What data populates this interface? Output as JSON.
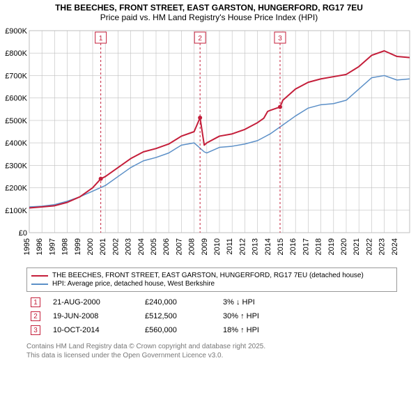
{
  "title_line1": "THE BEECHES, FRONT STREET, EAST GARSTON, HUNGERFORD, RG17 7EU",
  "title_line2": "Price paid vs. HM Land Registry's House Price Index (HPI)",
  "chart": {
    "type": "line",
    "xlim": [
      1995,
      2025
    ],
    "ylim": [
      0,
      900000
    ],
    "ytick_step": 100000,
    "yticks": [
      "£0",
      "£100K",
      "£200K",
      "£300K",
      "£400K",
      "£500K",
      "£600K",
      "£700K",
      "£800K",
      "£900K"
    ],
    "xticks": [
      1995,
      1996,
      1997,
      1998,
      1999,
      2000,
      2001,
      2002,
      2003,
      2004,
      2005,
      2006,
      2007,
      2008,
      2009,
      2010,
      2011,
      2012,
      2013,
      2014,
      2015,
      2016,
      2017,
      2018,
      2019,
      2020,
      2021,
      2022,
      2023,
      2024
    ],
    "background_color": "#ffffff",
    "grid_color": "#bfbfbf",
    "line_width_primary": 2,
    "line_width_secondary": 1.5,
    "marker_fill": "#c41e3a",
    "marker_radius": 3,
    "event_line_color": "#c41e3a",
    "event_line_dash": "3,3",
    "series": [
      {
        "id": "property",
        "label": "THE BEECHES, FRONT STREET, EAST GARSTON, HUNGERFORD, RG17 7EU (detached house)",
        "color": "#c41e3a",
        "points": [
          [
            1995,
            110
          ],
          [
            1996,
            115
          ],
          [
            1997,
            120
          ],
          [
            1998,
            135
          ],
          [
            1999,
            160
          ],
          [
            2000,
            200
          ],
          [
            2000.64,
            240
          ],
          [
            2001,
            250
          ],
          [
            2002,
            290
          ],
          [
            2003,
            330
          ],
          [
            2004,
            360
          ],
          [
            2005,
            375
          ],
          [
            2006,
            395
          ],
          [
            2007,
            430
          ],
          [
            2008,
            450
          ],
          [
            2008.47,
            512
          ],
          [
            2008.8,
            390
          ],
          [
            2009,
            400
          ],
          [
            2010,
            430
          ],
          [
            2011,
            440
          ],
          [
            2012,
            460
          ],
          [
            2013,
            490
          ],
          [
            2013.5,
            510
          ],
          [
            2013.8,
            540
          ],
          [
            2014,
            545
          ],
          [
            2014.78,
            560
          ],
          [
            2015,
            590
          ],
          [
            2016,
            640
          ],
          [
            2017,
            670
          ],
          [
            2018,
            685
          ],
          [
            2019,
            695
          ],
          [
            2020,
            705
          ],
          [
            2021,
            740
          ],
          [
            2022,
            790
          ],
          [
            2023,
            810
          ],
          [
            2024,
            785
          ],
          [
            2025,
            780
          ]
        ]
      },
      {
        "id": "hpi",
        "label": "HPI: Average price, detached house, West Berkshire",
        "color": "#5b8fc7",
        "points": [
          [
            1995,
            115
          ],
          [
            1996,
            118
          ],
          [
            1997,
            125
          ],
          [
            1998,
            140
          ],
          [
            1999,
            160
          ],
          [
            2000,
            185
          ],
          [
            2001,
            210
          ],
          [
            2002,
            250
          ],
          [
            2003,
            290
          ],
          [
            2004,
            320
          ],
          [
            2005,
            335
          ],
          [
            2006,
            355
          ],
          [
            2007,
            390
          ],
          [
            2008,
            400
          ],
          [
            2008.8,
            360
          ],
          [
            2009,
            355
          ],
          [
            2010,
            380
          ],
          [
            2011,
            385
          ],
          [
            2012,
            395
          ],
          [
            2013,
            410
          ],
          [
            2014,
            440
          ],
          [
            2015,
            480
          ],
          [
            2016,
            520
          ],
          [
            2017,
            555
          ],
          [
            2018,
            570
          ],
          [
            2019,
            575
          ],
          [
            2020,
            590
          ],
          [
            2021,
            640
          ],
          [
            2022,
            690
          ],
          [
            2023,
            700
          ],
          [
            2024,
            680
          ],
          [
            2025,
            685
          ]
        ]
      }
    ],
    "events": [
      {
        "n": "1",
        "x": 2000.64
      },
      {
        "n": "2",
        "x": 2008.47
      },
      {
        "n": "3",
        "x": 2014.78
      }
    ],
    "event_box_fill": "#ffffff"
  },
  "legend": {
    "items": [
      {
        "color": "#c41e3a",
        "label": "THE BEECHES, FRONT STREET, EAST GARSTON, HUNGERFORD, RG17 7EU (detached house)"
      },
      {
        "color": "#5b8fc7",
        "label": "HPI: Average price, detached house, West Berkshire"
      }
    ]
  },
  "markers": [
    {
      "n": "1",
      "date": "21-AUG-2000",
      "price": "£240,000",
      "delta": "3% ↓ HPI"
    },
    {
      "n": "2",
      "date": "19-JUN-2008",
      "price": "£512,500",
      "delta": "30% ↑ HPI"
    },
    {
      "n": "3",
      "date": "10-OCT-2014",
      "price": "£560,000",
      "delta": "18% ↑ HPI"
    }
  ],
  "footer_line1": "Contains HM Land Registry data © Crown copyright and database right 2025.",
  "footer_line2": "This data is licensed under the Open Government Licence v3.0."
}
